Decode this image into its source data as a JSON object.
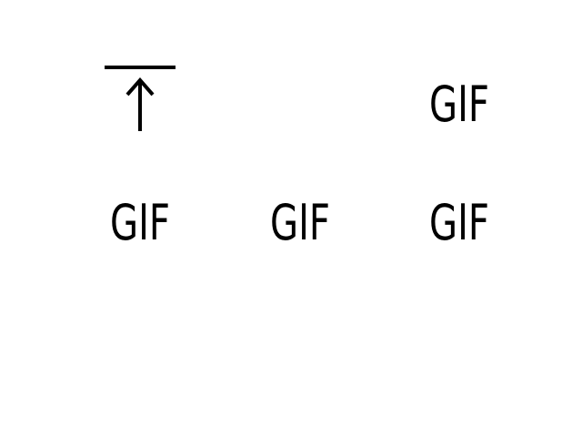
{
  "upload_tile": {
    "icon": "upload-icon",
    "color": "#000000"
  },
  "gif_tiles": [
    {
      "label": "GIF",
      "icon": "gif-file-icon"
    },
    {
      "label": "GIF",
      "icon": "gif-file-icon"
    },
    {
      "label": "GIF",
      "icon": "gif-file-icon"
    },
    {
      "label": "GIF",
      "icon": "gif-file-icon"
    }
  ],
  "colors": {
    "background": "#ffffff",
    "glyph": "#000000"
  }
}
